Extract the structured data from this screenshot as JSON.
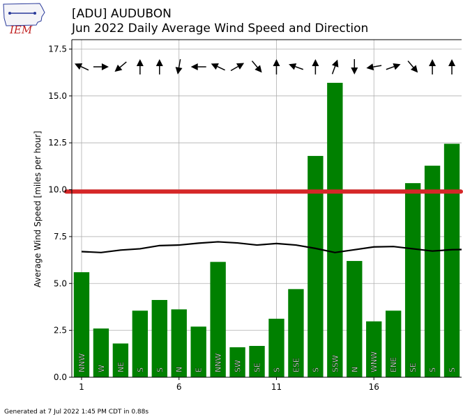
{
  "logo": {
    "text": "IEM"
  },
  "header": {
    "title": "[ADU] AUDUBON",
    "subtitle": "Jun 2022 Daily Average Wind Speed and Direction"
  },
  "footer": {
    "text": "Generated at 7 Jul 2022 1:45 PM CDT in 0.88s"
  },
  "chart_data": {
    "type": "bar",
    "title": "[ADU] AUDUBON",
    "subtitle": "Jun 2022 Daily Average Wind Speed and Direction",
    "xlabel": "",
    "ylabel": "Average Wind Speed [miles per hour]",
    "xlim": [
      0.5,
      20.5
    ],
    "ylim": [
      0,
      18
    ],
    "grid": true,
    "xticks": [
      1,
      6,
      11,
      16
    ],
    "yticks": [
      0.0,
      2.5,
      5.0,
      7.5,
      10.0,
      12.5,
      15.0,
      17.5
    ],
    "days": [
      1,
      2,
      3,
      4,
      5,
      6,
      7,
      8,
      9,
      10,
      11,
      12,
      13,
      14,
      15,
      16,
      17,
      18,
      19,
      20
    ],
    "values": [
      5.6,
      2.6,
      1.8,
      3.55,
      4.12,
      3.62,
      2.7,
      6.15,
      1.6,
      1.67,
      3.12,
      4.7,
      11.8,
      15.7,
      6.2,
      2.98,
      3.55,
      10.35,
      11.28,
      12.45
    ],
    "directions": [
      "NNW",
      "W",
      "NE",
      "S",
      "S",
      "N",
      "E",
      "NNW",
      "SW",
      "SE",
      "S",
      "ESE",
      "S",
      "SSW",
      "N",
      "WNW",
      "ENE",
      "SE",
      "S",
      "S"
    ],
    "arrow_angles_deg": [
      155,
      0,
      220,
      90,
      90,
      260,
      180,
      155,
      30,
      310,
      90,
      160,
      90,
      70,
      270,
      190,
      20,
      310,
      90,
      90
    ],
    "bar_color": "#008000",
    "climatology": {
      "color": "#000000",
      "values": [
        6.7,
        6.65,
        6.78,
        6.85,
        7.02,
        7.05,
        7.15,
        7.22,
        7.16,
        7.05,
        7.13,
        7.05,
        6.87,
        6.65,
        6.8,
        6.95,
        6.97,
        6.85,
        6.73,
        6.8,
        6.82
      ]
    },
    "monthly_average": {
      "value": 9.9,
      "color": "#d62728"
    }
  }
}
